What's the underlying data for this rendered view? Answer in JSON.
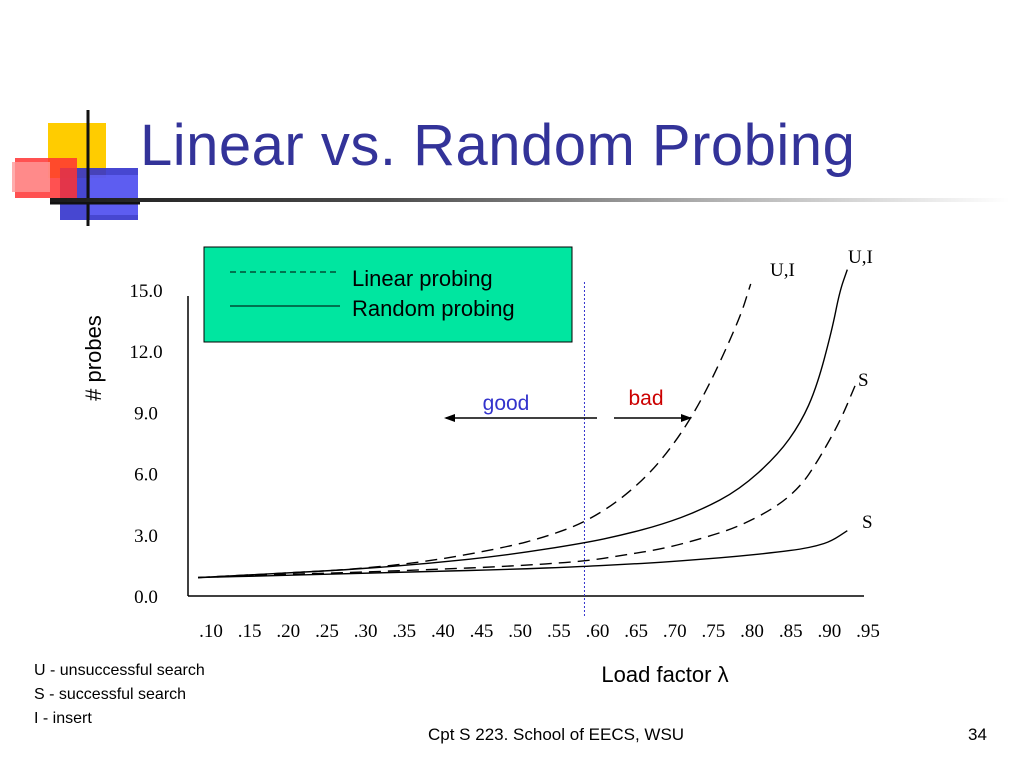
{
  "slide": {
    "title": "Linear vs. Random Probing",
    "accent_color": "#333399",
    "footer": "Cpt S 223. School of EECS, WSU",
    "page_number": "34",
    "key": [
      "U - unsuccessful search",
      "S - successful search",
      "I - insert"
    ]
  },
  "chart_data": {
    "type": "line",
    "ylabel": "# probes",
    "xlabel": "Load factor λ",
    "ylim": [
      0,
      16
    ],
    "y_ticks": [
      "0.0",
      "3.0",
      "6.0",
      "9.0",
      "12.0",
      "15.0"
    ],
    "x_tick_labels": [
      ".10",
      ".15",
      ".20",
      ".25",
      ".30",
      ".35",
      ".40",
      ".45",
      ".50",
      ".55",
      ".60",
      ".65",
      ".70",
      ".75",
      ".80",
      ".85",
      ".90",
      ".95"
    ],
    "legend": {
      "position": "top-left",
      "background": "#00E6A0",
      "entries": [
        {
          "label": "Linear probing",
          "style": "dashed"
        },
        {
          "label": "Random probing",
          "style": "solid"
        }
      ]
    },
    "series": [
      {
        "label": "U,I",
        "style": "dashed",
        "x": [
          0.1,
          0.2,
          0.3,
          0.4,
          0.5,
          0.55,
          0.6,
          0.65,
          0.7,
          0.75,
          0.8,
          0.815
        ],
        "y": [
          0.9,
          1.1,
          1.3,
          1.7,
          2.4,
          2.9,
          3.6,
          4.8,
          6.6,
          9.4,
          13.5,
          15.3
        ]
      },
      {
        "label": "U,I",
        "style": "solid",
        "x": [
          0.1,
          0.2,
          0.3,
          0.4,
          0.5,
          0.6,
          0.65,
          0.7,
          0.75,
          0.8,
          0.85,
          0.88,
          0.9,
          0.92,
          0.93,
          0.94
        ],
        "y": [
          0.9,
          1.1,
          1.3,
          1.6,
          2.0,
          2.6,
          3.0,
          3.5,
          4.2,
          5.2,
          6.9,
          8.5,
          10.2,
          13.0,
          14.9,
          16.0
        ]
      },
      {
        "label": "S",
        "style": "dashed",
        "x": [
          0.1,
          0.2,
          0.3,
          0.4,
          0.5,
          0.6,
          0.65,
          0.7,
          0.75,
          0.8,
          0.85,
          0.88,
          0.9,
          0.93,
          0.95
        ],
        "y": [
          0.9,
          1.05,
          1.15,
          1.3,
          1.45,
          1.7,
          2.0,
          2.3,
          2.8,
          3.4,
          4.4,
          5.4,
          6.5,
          8.5,
          10.3
        ]
      },
      {
        "label": "S",
        "style": "solid",
        "x": [
          0.1,
          0.2,
          0.3,
          0.4,
          0.5,
          0.6,
          0.65,
          0.7,
          0.75,
          0.8,
          0.85,
          0.88,
          0.9,
          0.92,
          0.94
        ],
        "y": [
          0.9,
          1.0,
          1.1,
          1.2,
          1.3,
          1.45,
          1.55,
          1.65,
          1.8,
          1.95,
          2.15,
          2.3,
          2.45,
          2.7,
          3.2
        ]
      }
    ],
    "divider_x": 0.6,
    "annotations": [
      {
        "text": "good",
        "color": "#3333CC"
      },
      {
        "text": "bad",
        "color": "#CC0000"
      }
    ]
  }
}
